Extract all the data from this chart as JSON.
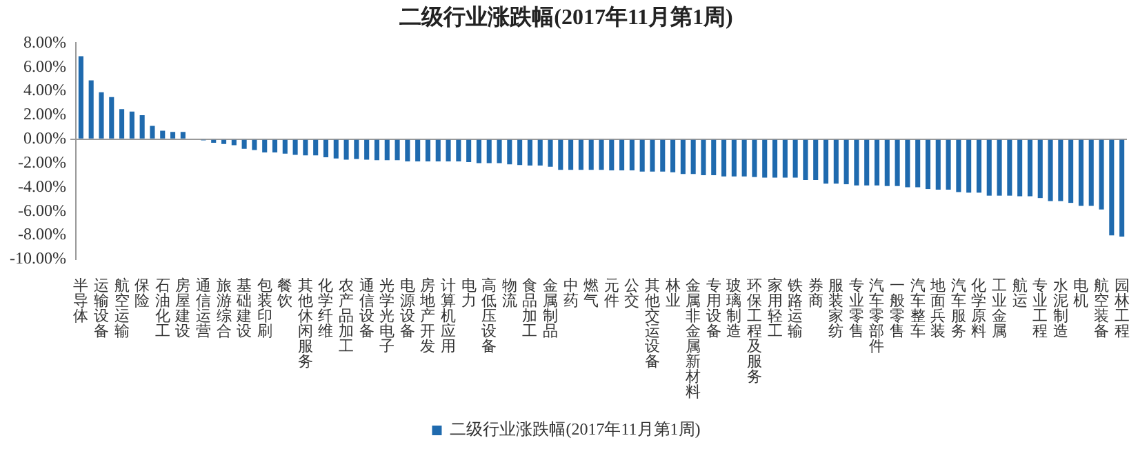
{
  "chart_data": {
    "type": "bar",
    "title": "二级行业涨跌幅(2017年11月第1周)",
    "categories": [
      "半导体",
      null,
      "运输设备",
      null,
      "航空运输",
      null,
      "保险",
      null,
      "石油化工",
      null,
      "房屋建设",
      null,
      "通信运营",
      null,
      "旅游综合",
      null,
      "基础建设",
      null,
      "包装印刷",
      null,
      "餐饮",
      null,
      "其他休闲服务",
      null,
      "化学纤维",
      null,
      "农产品加工",
      null,
      "通信设备",
      null,
      "光学光电子",
      null,
      "电源设备",
      null,
      "房地产开发",
      null,
      "计算机应用",
      null,
      "电力",
      null,
      "高低压设备",
      null,
      "物流",
      null,
      "食品加工",
      null,
      "金属制品",
      null,
      "中药",
      null,
      "燃气",
      null,
      "元件",
      null,
      "公交",
      null,
      "其他交运设备",
      null,
      "林业",
      null,
      "金属非金属新材料",
      null,
      "专用设备",
      null,
      "玻璃制造",
      null,
      "环保工程及服务",
      null,
      "家用轻工",
      null,
      "铁路运输",
      null,
      "券商",
      null,
      "服装家纺",
      null,
      "专业零售",
      null,
      "汽车零部件",
      null,
      "一般零售",
      null,
      "汽车整车",
      null,
      "地面兵装",
      null,
      "汽车服务",
      null,
      "化学原料",
      null,
      "工业金属",
      null,
      "航运",
      null,
      "专业工程",
      null,
      "水泥制造",
      null,
      "电机",
      null,
      "航空装备",
      null,
      "园林工程"
    ],
    "series": [
      {
        "name": "二级行业涨跌幅(2017年11月第1周)",
        "color": "#1f6aae",
        "values": [
          6.9,
          4.9,
          3.9,
          3.5,
          2.5,
          2.3,
          2.0,
          1.1,
          0.7,
          0.6,
          0.6,
          0.0,
          -0.1,
          -0.3,
          -0.4,
          -0.5,
          -0.8,
          -0.9,
          -1.1,
          -1.1,
          -1.2,
          -1.3,
          -1.35,
          -1.35,
          -1.5,
          -1.6,
          -1.7,
          -1.65,
          -1.7,
          -1.75,
          -1.75,
          -1.75,
          -1.85,
          -1.85,
          -1.85,
          -1.85,
          -1.85,
          -1.85,
          -1.9,
          -2.0,
          -2.0,
          -2.0,
          -2.1,
          -2.15,
          -2.2,
          -2.2,
          -2.3,
          -2.55,
          -2.55,
          -2.55,
          -2.55,
          -2.55,
          -2.6,
          -2.6,
          -2.6,
          -2.7,
          -2.7,
          -2.7,
          -2.75,
          -2.9,
          -2.9,
          -3.0,
          -3.0,
          -3.1,
          -3.1,
          -3.1,
          -3.15,
          -3.2,
          -3.2,
          -3.2,
          -3.2,
          -3.4,
          -3.4,
          -3.7,
          -3.7,
          -3.75,
          -3.85,
          -3.85,
          -3.85,
          -3.9,
          -3.9,
          -4.0,
          -4.0,
          -4.15,
          -4.2,
          -4.2,
          -4.4,
          -4.45,
          -4.45,
          -4.7,
          -4.7,
          -4.7,
          -4.75,
          -4.75,
          -4.9,
          -5.15,
          -5.15,
          -5.3,
          -5.55,
          -5.55,
          -5.85,
          -8.0,
          -8.1
        ]
      }
    ],
    "ylim": [
      -10,
      8
    ],
    "yticks": [
      {
        "value": 8,
        "label": "8.00%"
      },
      {
        "value": 6,
        "label": "6.00%"
      },
      {
        "value": 4,
        "label": "4.00%"
      },
      {
        "value": 2,
        "label": "2.00%"
      },
      {
        "value": 0,
        "label": "0.00%"
      },
      {
        "value": -2,
        "label": "-2.00%"
      },
      {
        "value": -4,
        "label": "-4.00%"
      },
      {
        "value": -6,
        "label": "-6.00%"
      },
      {
        "value": -8,
        "label": "-8.00%"
      },
      {
        "value": -10,
        "label": "-10.00%"
      }
    ],
    "legend": "bottom"
  }
}
